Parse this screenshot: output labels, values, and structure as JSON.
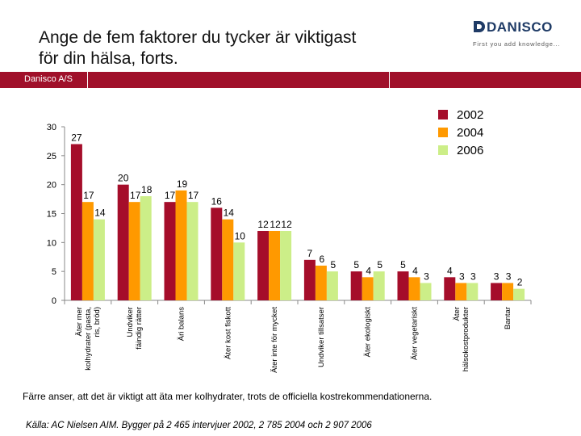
{
  "title_line1": "Ange de fem faktorer du tycker är viktigast",
  "title_line2": "för din hälsa, forts.",
  "logo": {
    "word": "DANISCO",
    "tagline": "First you add knowledge..."
  },
  "band_label": "Danisco A/S",
  "subtitle": "Färre anser, att det är viktigt att äta mer kolhydrater, trots de officiella kostrekommendationerna.",
  "source": "Källa: AC Nielsen AIM. Bygger på 2 465 intervjuer 2002, 2 785 2004 och 2 907 2006",
  "colors": {
    "band": "#a0102a",
    "s2002": "#a50d2a",
    "s2004": "#ff9900",
    "s2006": "#ccee88"
  },
  "chart_data": {
    "type": "bar",
    "title": "",
    "xlabel": "",
    "ylabel": "",
    "ylim": [
      0,
      30
    ],
    "yticks": [
      0,
      5,
      10,
      15,
      20,
      25,
      30
    ],
    "legend_position": "top-right",
    "categories": [
      [
        "Äter mer",
        "kolhydrater (pasta,",
        "ris, bröd)"
      ],
      [
        "Undviker",
        "fäindig rätter"
      ],
      [
        "Äri balans"
      ],
      [
        "Äter kost fiskott"
      ],
      [
        "Äter inte för mycket"
      ],
      [
        "Undviker tillsatser"
      ],
      [
        "Äter ekologiskt"
      ],
      [
        "Äter vegetariskt"
      ],
      [
        "Äter",
        "hälsokostprodukter"
      ],
      [
        "Bantar"
      ]
    ],
    "series": [
      {
        "name": "2002",
        "values": [
          27,
          20,
          17,
          16,
          12,
          7,
          5,
          5,
          4,
          3
        ]
      },
      {
        "name": "2004",
        "values": [
          17,
          17,
          19,
          14,
          12,
          6,
          4,
          4,
          3,
          3
        ]
      },
      {
        "name": "2006",
        "values": [
          14,
          18,
          17,
          10,
          12,
          5,
          5,
          3,
          3,
          2
        ]
      }
    ]
  }
}
